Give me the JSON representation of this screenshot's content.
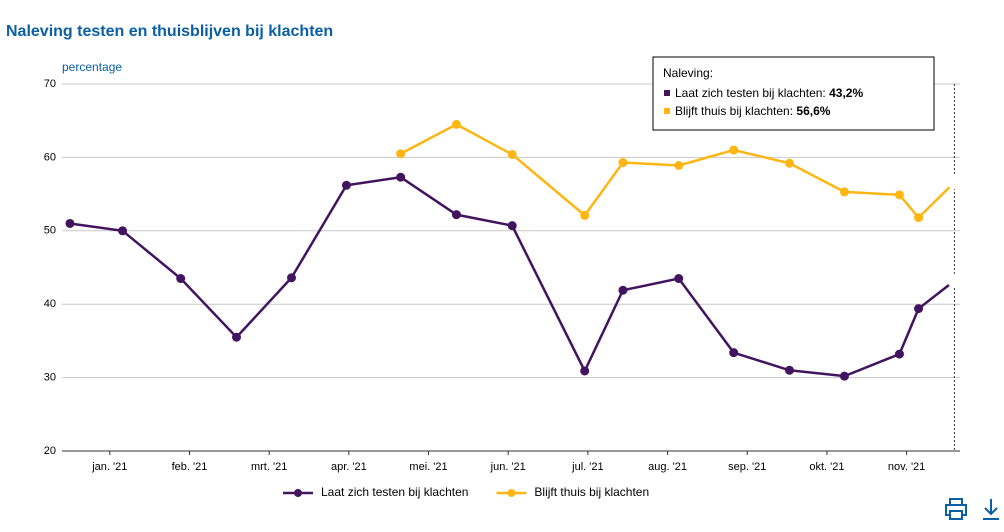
{
  "chart_data": {
    "type": "line",
    "title": "Naleving testen en thuisblijven bij klachten",
    "y_label": "percentage",
    "x": [
      0.0,
      0.66,
      1.39,
      2.09,
      2.78,
      3.47,
      4.15,
      4.85,
      5.55,
      6.46,
      6.94,
      7.64,
      8.33,
      9.03,
      9.72,
      10.41,
      10.65,
      11.1
    ],
    "xlim": [
      -0.1,
      11.17
    ],
    "xticks": [
      {
        "value": 0.5,
        "label": "jan. '21"
      },
      {
        "value": 1.5,
        "label": "feb. '21"
      },
      {
        "value": 2.5,
        "label": "mrt. '21"
      },
      {
        "value": 3.5,
        "label": "apr. '21"
      },
      {
        "value": 4.5,
        "label": "mei. '21"
      },
      {
        "value": 5.5,
        "label": "jun. '21"
      },
      {
        "value": 6.5,
        "label": "jul. '21"
      },
      {
        "value": 7.5,
        "label": "aug. '21"
      },
      {
        "value": 8.5,
        "label": "sep. '21"
      },
      {
        "value": 9.5,
        "label": "okt. '21"
      },
      {
        "value": 10.5,
        "label": "nov. '21"
      }
    ],
    "ylim": [
      20,
      70
    ],
    "yticks": [
      20,
      30,
      40,
      50,
      60,
      70
    ],
    "grid": true,
    "series": [
      {
        "name": "Laat zich testen bij klachten",
        "color": "#42145f",
        "values": [
          51.0,
          50.0,
          43.5,
          35.5,
          43.6,
          56.2,
          57.3,
          52.2,
          50.7,
          30.9,
          41.9,
          43.5,
          33.4,
          31.0,
          30.2,
          33.2,
          39.4,
          43.2
        ]
      },
      {
        "name": "Blijft thuis bij klachten",
        "color": "#ffb612",
        "values": [
          null,
          null,
          null,
          null,
          null,
          null,
          60.5,
          64.5,
          60.4,
          52.1,
          59.3,
          58.9,
          61.0,
          59.2,
          55.3,
          54.9,
          51.8,
          56.6
        ]
      }
    ],
    "tooltip": {
      "title": "Naleving:",
      "items": [
        {
          "label": "Laat zich testen bij klachten:",
          "value_label": "43,2%"
        },
        {
          "label": "Blijft thuis bij klachten:",
          "value_label": "56,6%"
        }
      ]
    }
  }
}
